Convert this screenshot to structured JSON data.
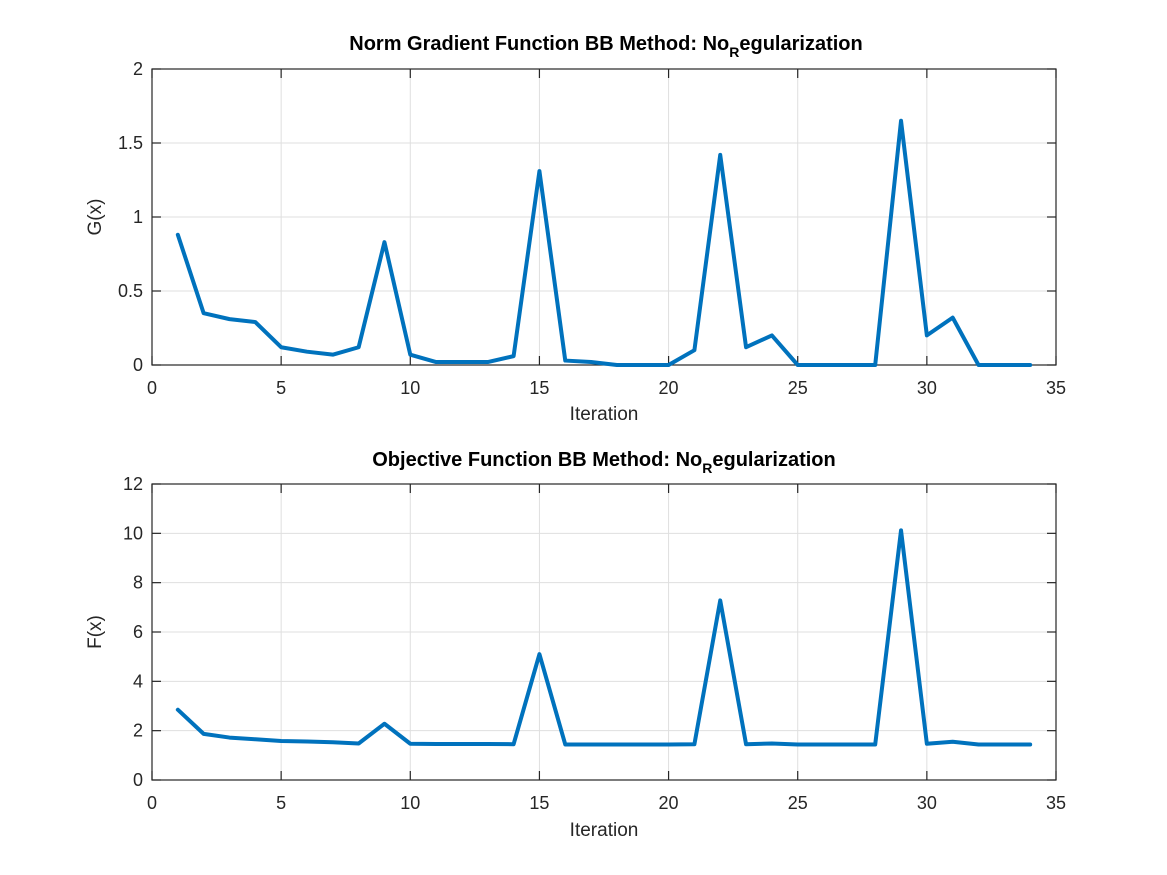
{
  "chart_data": [
    {
      "type": "line",
      "title_main": "Norm Gradient Function BB Method: No",
      "title_sub": "R",
      "title_rest": "egularization",
      "xlabel": "Iteration",
      "ylabel": "G(x)",
      "xlim": [
        0,
        35
      ],
      "ylim": [
        0,
        2
      ],
      "xticks": [
        0,
        5,
        10,
        15,
        20,
        25,
        30,
        35
      ],
      "yticks": [
        0,
        0.5,
        1,
        1.5,
        2
      ],
      "xtick_labels": [
        "0",
        "5",
        "10",
        "15",
        "20",
        "25",
        "30",
        "35"
      ],
      "ytick_labels": [
        "0",
        "0.5",
        "1",
        "1.5",
        "2"
      ],
      "grid": true,
      "series": [
        {
          "color": "#0072BD",
          "x": [
            1,
            2,
            3,
            4,
            5,
            6,
            7,
            8,
            9,
            10,
            11,
            12,
            13,
            14,
            15,
            16,
            17,
            18,
            19,
            20,
            21,
            22,
            23,
            24,
            25,
            26,
            27,
            28,
            29,
            30,
            31,
            32,
            33,
            34
          ],
          "y": [
            0.88,
            0.35,
            0.31,
            0.29,
            0.12,
            0.09,
            0.07,
            0.12,
            0.83,
            0.07,
            0.02,
            0.02,
            0.02,
            0.06,
            1.31,
            0.03,
            0.02,
            0.0,
            0.0,
            0.0,
            0.1,
            1.42,
            0.12,
            0.2,
            0.0,
            0.0,
            0.0,
            0.0,
            1.65,
            0.2,
            0.32,
            0.0,
            0.0,
            0.0
          ]
        }
      ]
    },
    {
      "type": "line",
      "title_main": "Objective Function BB Method: No",
      "title_sub": "R",
      "title_rest": "egularization",
      "xlabel": "Iteration",
      "ylabel": "F(x)",
      "xlim": [
        0,
        35
      ],
      "ylim": [
        0,
        12
      ],
      "xticks": [
        0,
        5,
        10,
        15,
        20,
        25,
        30,
        35
      ],
      "yticks": [
        0,
        2,
        4,
        6,
        8,
        10,
        12
      ],
      "xtick_labels": [
        "0",
        "5",
        "10",
        "15",
        "20",
        "25",
        "30",
        "35"
      ],
      "ytick_labels": [
        "0",
        "2",
        "4",
        "6",
        "8",
        "10",
        "12"
      ],
      "grid": true,
      "series": [
        {
          "color": "#0072BD",
          "x": [
            1,
            2,
            3,
            4,
            5,
            6,
            7,
            8,
            9,
            10,
            11,
            12,
            13,
            14,
            15,
            16,
            17,
            18,
            19,
            20,
            21,
            22,
            23,
            24,
            25,
            26,
            27,
            28,
            29,
            30,
            31,
            32,
            33,
            34
          ],
          "y": [
            2.85,
            1.87,
            1.72,
            1.65,
            1.58,
            1.56,
            1.53,
            1.48,
            2.28,
            1.47,
            1.46,
            1.46,
            1.46,
            1.45,
            5.1,
            1.44,
            1.44,
            1.44,
            1.44,
            1.44,
            1.45,
            7.28,
            1.45,
            1.48,
            1.44,
            1.44,
            1.44,
            1.44,
            10.12,
            1.47,
            1.55,
            1.44,
            1.44,
            1.44
          ]
        }
      ]
    }
  ]
}
